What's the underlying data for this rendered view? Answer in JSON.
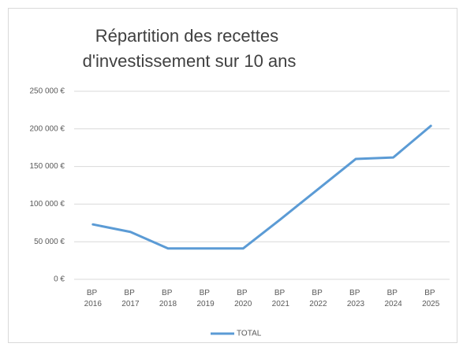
{
  "chart_data": {
    "type": "line",
    "title": "Répartition des recettes d'investissement sur 10 ans",
    "categories": [
      "BP 2016",
      "BP 2017",
      "BP 2018",
      "BP 2019",
      "BP 2020",
      "BP 2021",
      "BP 2022",
      "BP 2023",
      "BP 2024",
      "BP 2025"
    ],
    "series": [
      {
        "name": "TOTAL",
        "color": "#5b9bd5",
        "values": [
          73000,
          63000,
          41000,
          41000,
          41000,
          80000,
          120000,
          160000,
          162000,
          204000
        ]
      }
    ],
    "ylim": [
      0,
      250000
    ],
    "yticks": [
      {
        "value": 0,
        "label": "0 €"
      },
      {
        "value": 50000,
        "label": "50 000 €"
      },
      {
        "value": 100000,
        "label": "100 000 €"
      },
      {
        "value": 150000,
        "label": "150 000 €"
      },
      {
        "value": 200000,
        "label": "200 000 €"
      },
      {
        "value": 250000,
        "label": "250 000 €"
      }
    ],
    "grid": true,
    "legend": "bottom"
  }
}
